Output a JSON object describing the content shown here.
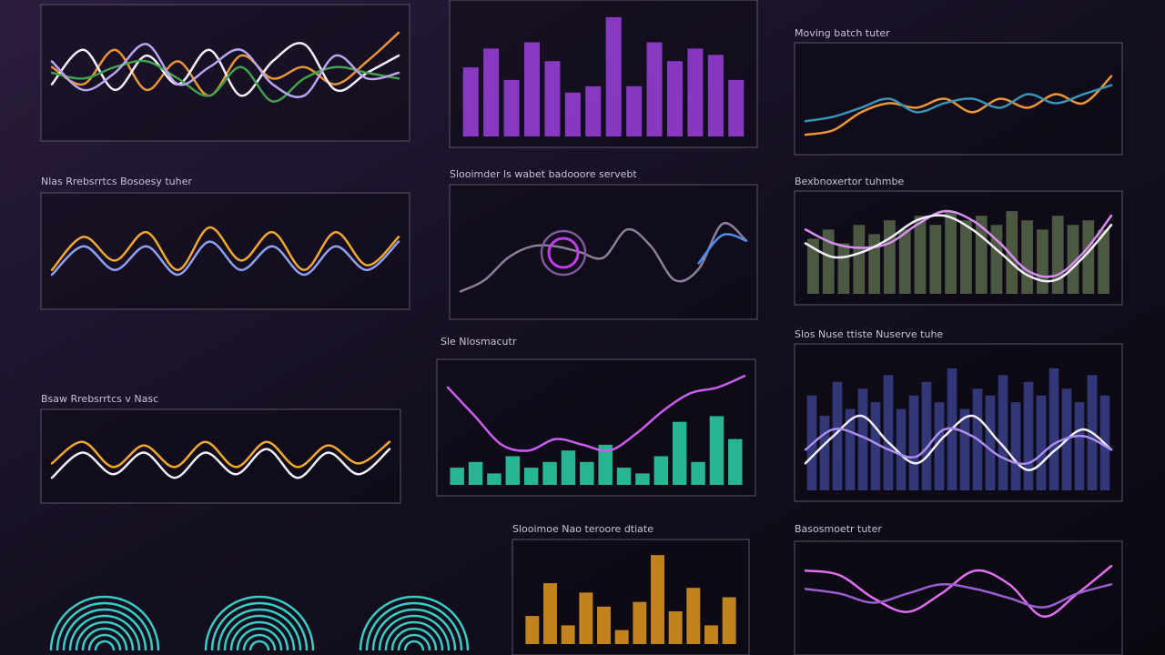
{
  "chart_data": [
    {
      "type": "line",
      "ylim": [
        0,
        100
      ],
      "series": [
        {
          "color": "#e8953a",
          "values": [
            55,
            40,
            70,
            35,
            60,
            30,
            65,
            45,
            55,
            40,
            60,
            85
          ]
        },
        {
          "color": "#f2eefa",
          "values": [
            40,
            70,
            35,
            65,
            40,
            70,
            30,
            60,
            75,
            35,
            50,
            65
          ]
        },
        {
          "color": "#3fa14a",
          "values": [
            50,
            45,
            55,
            60,
            45,
            30,
            55,
            25,
            45,
            55,
            50,
            45
          ]
        },
        {
          "color": "#b9a4f0",
          "values": [
            60,
            35,
            50,
            75,
            40,
            55,
            70,
            40,
            30,
            65,
            45,
            50
          ]
        }
      ]
    },
    {
      "type": "bar",
      "ylim": [
        0,
        100
      ],
      "series": [
        {
          "color": "#a445e8",
          "values": [
            55,
            70,
            45,
            75,
            60,
            35,
            40,
            95,
            40,
            75,
            60,
            70,
            65,
            45
          ]
        }
      ]
    },
    {
      "type": "line",
      "title": "Moving batch tuter",
      "ylim": [
        0,
        100
      ],
      "series": [
        {
          "color": "#f0963a",
          "values": [
            10,
            15,
            35,
            45,
            40,
            50,
            35,
            50,
            40,
            55,
            45,
            75
          ]
        },
        {
          "color": "#3a93b8",
          "values": [
            25,
            30,
            40,
            50,
            35,
            45,
            50,
            40,
            55,
            45,
            55,
            65
          ]
        }
      ]
    },
    {
      "type": "line",
      "title": "Nlas Rrebsrrtcs Bosoesy tuher",
      "ylim": [
        0,
        100
      ],
      "series": [
        {
          "color": "#f0a830",
          "values": [
            30,
            65,
            40,
            70,
            30,
            75,
            40,
            70,
            30,
            70,
            35,
            65
          ]
        },
        {
          "color": "#8fa0f5",
          "values": [
            25,
            55,
            30,
            55,
            25,
            60,
            30,
            55,
            25,
            55,
            30,
            60
          ]
        }
      ]
    },
    {
      "type": "line",
      "title": "Slooimder ls wabet badooore servebt",
      "ylim": [
        0,
        100
      ],
      "series": [
        {
          "color": "#8a7f9a",
          "values": [
            15,
            25,
            45,
            55,
            55,
            50,
            45,
            70,
            55,
            25,
            35,
            75,
            60
          ]
        },
        {
          "color": "#4f8ef0",
          "values": [
            null,
            null,
            null,
            null,
            null,
            null,
            null,
            null,
            null,
            null,
            40,
            65,
            60
          ]
        }
      ]
    },
    {
      "type": "combo",
      "title": "Bexbnoxertor tuhmbe",
      "ylim": [
        0,
        100
      ],
      "series": [
        {
          "type": "bar",
          "color": "#5d6b4e",
          "values": [
            60,
            70,
            55,
            75,
            65,
            80,
            70,
            85,
            75,
            90,
            80,
            85,
            75,
            90,
            80,
            70,
            85,
            75,
            80,
            70
          ]
        },
        {
          "type": "line",
          "color": "#d88ef0",
          "values": [
            70,
            55,
            50,
            55,
            75,
            90,
            80,
            55,
            25,
            20,
            45,
            85
          ]
        },
        {
          "type": "line",
          "color": "#f2eefa",
          "values": [
            55,
            40,
            45,
            60,
            80,
            85,
            70,
            45,
            20,
            15,
            40,
            75
          ]
        }
      ]
    },
    {
      "type": "combo",
      "title": "Sle Nlosmacutr",
      "ylim": [
        0,
        100
      ],
      "series": [
        {
          "type": "bar",
          "color": "#2fe0b0",
          "values": [
            15,
            20,
            10,
            25,
            15,
            20,
            30,
            20,
            35,
            15,
            10,
            25,
            55,
            20,
            60,
            40
          ]
        },
        {
          "type": "line",
          "color": "#c75ef0",
          "values": [
            85,
            60,
            35,
            30,
            40,
            35,
            30,
            45,
            65,
            80,
            85,
            95
          ]
        }
      ]
    },
    {
      "type": "line",
      "title": "Bsaw Rrebsrrtcs v Nasc",
      "ylim": [
        0,
        100
      ],
      "series": [
        {
          "color": "#f0a830",
          "values": [
            40,
            70,
            35,
            65,
            35,
            70,
            35,
            70,
            35,
            65,
            40,
            70
          ]
        },
        {
          "color": "#f2eefa",
          "values": [
            20,
            55,
            25,
            55,
            20,
            55,
            25,
            60,
            20,
            55,
            25,
            60
          ]
        }
      ]
    },
    {
      "type": "combo",
      "title": "Slos Nuse ttiste Nuserve tuhe",
      "ylim": [
        0,
        100
      ],
      "series": [
        {
          "type": "bar",
          "color": "#3d4290",
          "values": [
            70,
            55,
            80,
            60,
            75,
            65,
            85,
            60,
            70,
            80,
            65,
            90,
            60,
            75,
            70,
            85,
            65,
            80,
            70,
            90,
            75,
            65,
            85,
            70
          ]
        },
        {
          "type": "line",
          "color": "#f2eefa",
          "values": [
            20,
            40,
            55,
            35,
            20,
            40,
            55,
            35,
            15,
            30,
            45,
            30
          ]
        },
        {
          "type": "line",
          "color": "#a98ef0",
          "values": [
            30,
            45,
            40,
            30,
            25,
            45,
            40,
            25,
            20,
            35,
            40,
            30
          ]
        }
      ]
    },
    {
      "type": "bar",
      "title": "Slooimoe Nao teroore dtiate",
      "ylim": [
        0,
        100
      ],
      "series": [
        {
          "color": "#f0a020",
          "values": [
            30,
            65,
            20,
            55,
            40,
            15,
            45,
            95,
            35,
            60,
            20,
            50
          ]
        }
      ]
    },
    {
      "type": "line",
      "title": "Basosmoetr tuter",
      "ylim": [
        0,
        100
      ],
      "series": [
        {
          "color": "#e070f0",
          "values": [
            80,
            75,
            50,
            35,
            55,
            80,
            65,
            30,
            55,
            85
          ]
        },
        {
          "color": "#9a5ed0",
          "values": [
            60,
            55,
            45,
            55,
            65,
            60,
            50,
            40,
            55,
            65
          ]
        }
      ]
    }
  ]
}
